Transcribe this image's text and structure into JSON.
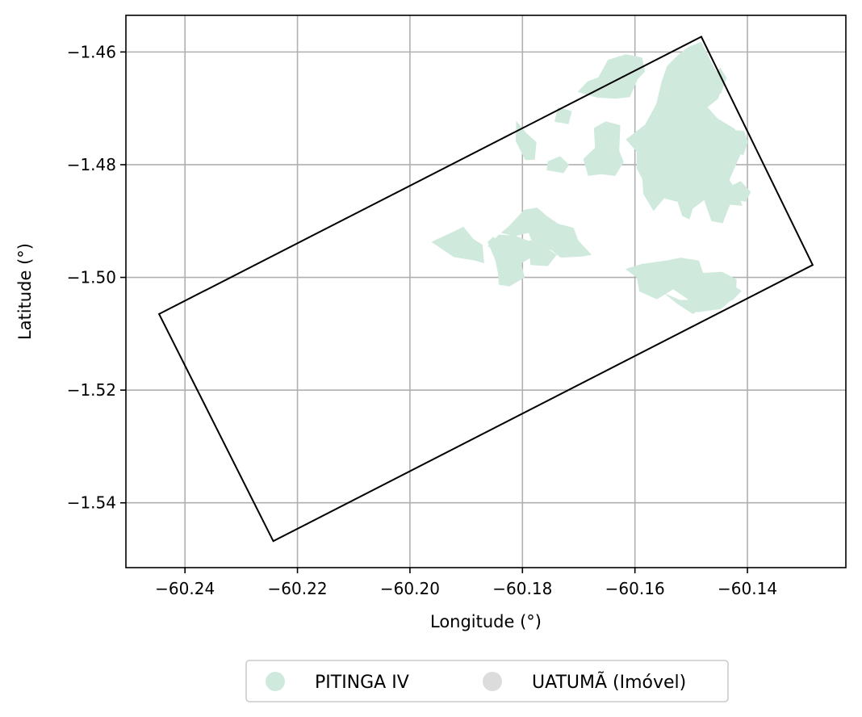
{
  "chart_data": {
    "type": "map",
    "xlabel": "Longitude (°)",
    "ylabel": "Latitude (°)",
    "xlim": [
      -60.2505,
      -60.1225
    ],
    "ylim": [
      -1.5515,
      -1.4535
    ],
    "grid": true,
    "x_ticks": [
      {
        "value": -60.24,
        "label": "−60.24"
      },
      {
        "value": -60.22,
        "label": "−60.22"
      },
      {
        "value": -60.2,
        "label": "−60.20"
      },
      {
        "value": -60.18,
        "label": "−60.18"
      },
      {
        "value": -60.16,
        "label": "−60.16"
      },
      {
        "value": -60.14,
        "label": "−60.14"
      }
    ],
    "y_ticks": [
      {
        "value": -1.46,
        "label": "−1.46"
      },
      {
        "value": -1.48,
        "label": "−1.48"
      },
      {
        "value": -1.5,
        "label": "−1.50"
      },
      {
        "value": -1.52,
        "label": "−1.52"
      },
      {
        "value": -1.54,
        "label": "−1.54"
      }
    ],
    "boundary": {
      "color": "#000000",
      "coords": [
        [
          -60.1482,
          -1.4573
        ],
        [
          -60.1284,
          -1.4978
        ],
        [
          -60.2243,
          -1.5468
        ],
        [
          -60.2446,
          -1.5065
        ],
        [
          -60.1482,
          -1.4573
        ]
      ]
    },
    "legend": {
      "placement": "bottom-center",
      "entries": [
        {
          "label": "PITINGA IV",
          "color": "#cfeadd"
        },
        {
          "label": "UATUMÃ (Imóvel)",
          "color": "#dcdcdc"
        }
      ]
    },
    "layers": [
      {
        "name": "PITINGA IV",
        "color": "#cfeadd",
        "polygons": [
          [
            [
              -60.1505,
              -1.4591
            ],
            [
              -60.1482,
              -1.4582
            ],
            [
              -60.1462,
              -1.4622
            ],
            [
              -60.1443,
              -1.4656
            ],
            [
              -60.1452,
              -1.4683
            ],
            [
              -60.1471,
              -1.4698
            ],
            [
              -60.1453,
              -1.4718
            ],
            [
              -60.1423,
              -1.4736
            ],
            [
              -60.1405,
              -1.4765
            ],
            [
              -60.1418,
              -1.4795
            ],
            [
              -60.1432,
              -1.4827
            ],
            [
              -60.1418,
              -1.4849
            ],
            [
              -60.1409,
              -1.4873
            ],
            [
              -60.1431,
              -1.4871
            ],
            [
              -60.1444,
              -1.4904
            ],
            [
              -60.1464,
              -1.49
            ],
            [
              -60.1477,
              -1.4863
            ],
            [
              -60.1497,
              -1.4878
            ],
            [
              -60.1503,
              -1.4897
            ],
            [
              -60.1516,
              -1.4891
            ],
            [
              -60.1524,
              -1.4866
            ],
            [
              -60.1548,
              -1.486
            ],
            [
              -60.1567,
              -1.4882
            ],
            [
              -60.1585,
              -1.4852
            ],
            [
              -60.1587,
              -1.4825
            ],
            [
              -60.1597,
              -1.4807
            ],
            [
              -60.1597,
              -1.4777
            ],
            [
              -60.1616,
              -1.4755
            ],
            [
              -60.1582,
              -1.4729
            ],
            [
              -60.1562,
              -1.4692
            ],
            [
              -60.1553,
              -1.4654
            ],
            [
              -60.1543,
              -1.4625
            ],
            [
              -60.1522,
              -1.4604
            ]
          ],
          [
            [
              -60.1595,
              -1.4648
            ],
            [
              -60.1582,
              -1.4635
            ],
            [
              -60.1587,
              -1.461
            ],
            [
              -60.1616,
              -1.4604
            ],
            [
              -60.1648,
              -1.4614
            ],
            [
              -60.1665,
              -1.4645
            ],
            [
              -60.1684,
              -1.4652
            ],
            [
              -60.1702,
              -1.4671
            ],
            [
              -60.1667,
              -1.4681
            ],
            [
              -60.1634,
              -1.4683
            ],
            [
              -60.1609,
              -1.468
            ]
          ],
          [
            [
              -60.1432,
              -1.4738
            ],
            [
              -60.1406,
              -1.474
            ],
            [
              -60.1399,
              -1.476
            ],
            [
              -60.1407,
              -1.4783
            ],
            [
              -60.1428,
              -1.4777
            ]
          ],
          [
            [
              -60.1474,
              -1.4669
            ],
            [
              -60.1466,
              -1.4645
            ],
            [
              -60.1448,
              -1.4628
            ],
            [
              -60.1437,
              -1.4646
            ],
            [
              -60.1447,
              -1.4674
            ]
          ],
          [
            [
              -60.1673,
              -1.4735
            ],
            [
              -60.1652,
              -1.4723
            ],
            [
              -60.1626,
              -1.473
            ],
            [
              -60.1628,
              -1.4775
            ],
            [
              -60.162,
              -1.4795
            ],
            [
              -60.1635,
              -1.482
            ],
            [
              -60.166,
              -1.4817
            ],
            [
              -60.1683,
              -1.482
            ],
            [
              -60.1692,
              -1.479
            ],
            [
              -60.1671,
              -1.477
            ]
          ],
          [
            [
              -60.1737,
              -1.4698
            ],
            [
              -60.1712,
              -1.4705
            ],
            [
              -60.1718,
              -1.4728
            ],
            [
              -60.1743,
              -1.4724
            ]
          ],
          [
            [
              -60.1755,
              -1.4794
            ],
            [
              -60.1733,
              -1.4785
            ],
            [
              -60.1717,
              -1.48
            ],
            [
              -60.1727,
              -1.4815
            ],
            [
              -60.1757,
              -1.481
            ]
          ],
          [
            [
              -60.1811,
              -1.4722
            ],
            [
              -60.1793,
              -1.4744
            ],
            [
              -60.1775,
              -1.476
            ],
            [
              -60.1778,
              -1.4791
            ],
            [
              -60.1795,
              -1.4792
            ],
            [
              -60.1812,
              -1.4758
            ]
          ],
          [
            [
              -60.1426,
              -1.4836
            ],
            [
              -60.1412,
              -1.4829
            ],
            [
              -60.1394,
              -1.4848
            ],
            [
              -60.1403,
              -1.4866
            ],
            [
              -60.1419,
              -1.4863
            ]
          ],
          [
            [
              -60.1862,
              -1.4945
            ],
            [
              -60.1842,
              -1.4924
            ],
            [
              -60.1813,
              -1.4926
            ],
            [
              -60.1779,
              -1.4939
            ],
            [
              -60.1761,
              -1.495
            ],
            [
              -60.1795,
              -1.4971
            ],
            [
              -60.1803,
              -1.4975
            ],
            [
              -60.1826,
              -1.4958
            ]
          ],
          [
            [
              -60.1758,
              -1.489
            ],
            [
              -60.1774,
              -1.4876
            ],
            [
              -60.1797,
              -1.488
            ],
            [
              -60.1823,
              -1.4908
            ],
            [
              -60.1838,
              -1.4921
            ],
            [
              -60.1814,
              -1.4927
            ],
            [
              -60.1789,
              -1.4921
            ],
            [
              -60.1781,
              -1.4942
            ],
            [
              -60.1748,
              -1.4952
            ],
            [
              -60.1732,
              -1.4965
            ],
            [
              -60.1695,
              -1.4963
            ],
            [
              -60.1677,
              -1.496
            ],
            [
              -60.1701,
              -1.4934
            ],
            [
              -60.1709,
              -1.4912
            ],
            [
              -60.1736,
              -1.4905
            ]
          ],
          [
            [
              -60.1788,
              -1.4934
            ],
            [
              -60.1768,
              -1.494
            ],
            [
              -60.1739,
              -1.496
            ],
            [
              -60.1755,
              -1.498
            ],
            [
              -60.1786,
              -1.4978
            ]
          ],
          [
            [
              -60.1862,
              -1.4937
            ],
            [
              -60.1852,
              -1.4928
            ],
            [
              -60.1803,
              -1.4972
            ],
            [
              -60.1796,
              -1.5
            ],
            [
              -60.1823,
              -1.5016
            ],
            [
              -60.1842,
              -1.5013
            ],
            [
              -60.1843,
              -1.4995
            ],
            [
              -60.1848,
              -1.497
            ]
          ],
          [
            [
              -60.1962,
              -1.4937
            ],
            [
              -60.1923,
              -1.4919
            ],
            [
              -60.1905,
              -1.491
            ],
            [
              -60.1887,
              -1.4932
            ],
            [
              -60.1871,
              -1.4942
            ],
            [
              -60.1868,
              -1.4975
            ],
            [
              -60.1885,
              -1.497
            ],
            [
              -60.1922,
              -1.4964
            ]
          ],
          [
            [
              -60.1617,
              -1.4985
            ],
            [
              -60.1587,
              -1.4976
            ],
            [
              -60.1544,
              -1.497
            ],
            [
              -60.1519,
              -1.4965
            ],
            [
              -60.1486,
              -1.497
            ],
            [
              -60.1479,
              -1.4992
            ],
            [
              -60.1445,
              -1.499
            ],
            [
              -60.1419,
              -1.5004
            ],
            [
              -60.1421,
              -1.5034
            ],
            [
              -60.1447,
              -1.5056
            ],
            [
              -60.1489,
              -1.5062
            ],
            [
              -60.1507,
              -1.5038
            ],
            [
              -60.1532,
              -1.5021
            ],
            [
              -60.1561,
              -1.5039
            ],
            [
              -60.1592,
              -1.5025
            ],
            [
              -60.1597,
              -1.5
            ]
          ],
          [
            [
              -60.148,
              -1.5055
            ],
            [
              -60.1497,
              -1.5065
            ],
            [
              -60.1526,
              -1.5046
            ],
            [
              -60.1548,
              -1.5028
            ],
            [
              -60.152,
              -1.504
            ],
            [
              -60.1504,
              -1.504
            ]
          ],
          [
            [
              -60.1455,
              -1.5007
            ],
            [
              -60.1431,
              -1.5011
            ],
            [
              -60.141,
              -1.5024
            ],
            [
              -60.1427,
              -1.5041
            ],
            [
              -60.1449,
              -1.504
            ]
          ]
        ]
      },
      {
        "name": "UATUMÃ (Imóvel)",
        "color": "#dcdcdc",
        "polygons": []
      }
    ]
  }
}
